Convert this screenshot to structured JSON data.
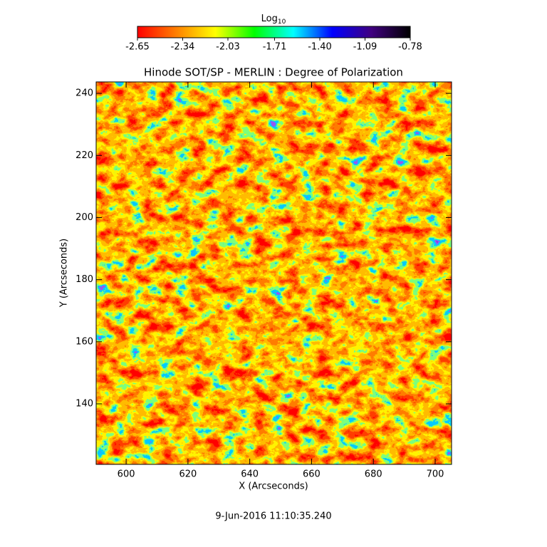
{
  "chart_data": {
    "type": "heatmap",
    "title": "Hinode SOT/SP - MERLIN : Degree of Polarization",
    "x_label": "X (Arcseconds)",
    "y_label": "Y (Arcseconds)",
    "xlim": [
      590.3,
      705.3
    ],
    "ylim": [
      120.5,
      243.7
    ],
    "xticks": [
      600,
      620,
      640,
      660,
      680,
      700
    ],
    "yticks": [
      140,
      160,
      180,
      200,
      220,
      240
    ],
    "colorbar": {
      "label": "Log",
      "label_sub": "10",
      "lim": [
        -2.65,
        -0.78
      ],
      "ticks": [
        -2.65,
        -2.34,
        -2.03,
        -1.71,
        {
          "value": -1.4,
          "label": "-1.40"
        },
        -1.09,
        -0.78
      ],
      "colormap": [
        "#ff0000",
        "#ff8000",
        "#ffff00",
        "#00ff00",
        "#00ffff",
        "#0000ff",
        "#400080",
        "#000000"
      ]
    },
    "footer": "9-Jun-2016 11:10:35.240"
  }
}
